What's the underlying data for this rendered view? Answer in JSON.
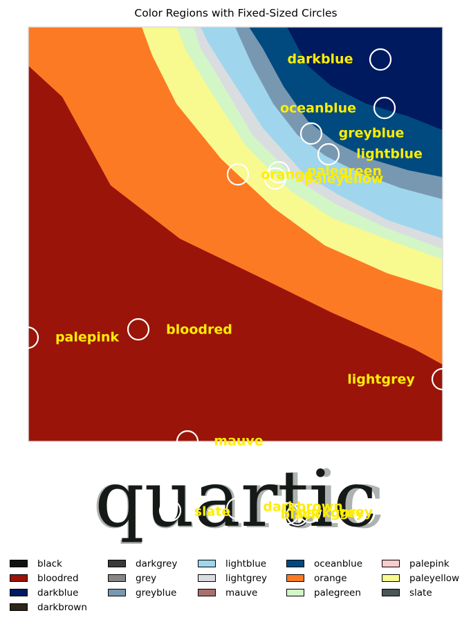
{
  "chart_data": {
    "type": "heatmap",
    "title": "Color Regions with Fixed-Sized Circles",
    "xlabel": "",
    "ylabel": "",
    "grid": false,
    "axes_visible": false,
    "colors": {
      "black": "#111111",
      "bloodred": "#9a1409",
      "darkblue": "#001a5f",
      "darkbrown": "#2e2419",
      "darkgrey": "#3a3a3a",
      "grey": "#868686",
      "greyblue": "#7898b1",
      "lightblue": "#9fd6ee",
      "lightgrey": "#dadde0",
      "mauve": "#a9706c",
      "oceanblue": "#004a7f",
      "orange": "#fc7a24",
      "palegreen": "#d2f6c6",
      "palepink": "#f6cdcc",
      "paleyellow": "#f8f98f",
      "slate": "#495656"
    },
    "regions_top_panel": [
      "bloodred",
      "orange",
      "paleyellow",
      "palegreen",
      "lightgrey",
      "lightblue",
      "greyblue",
      "oceanblue",
      "darkblue"
    ],
    "bottom_panel_word": "quartic",
    "annotations_top": [
      {
        "label": "darkblue"
      },
      {
        "label": "oceanblue"
      },
      {
        "label": "greyblue"
      },
      {
        "label": "lightblue"
      },
      {
        "label": "orange"
      },
      {
        "label": "palegreen"
      },
      {
        "label": "paleyellow"
      },
      {
        "label": "palepink"
      },
      {
        "label": "bloodred"
      },
      {
        "label": "lightgrey"
      },
      {
        "label": "mauve"
      }
    ],
    "annotations_bottom": [
      {
        "label": "slate"
      },
      {
        "label": "darkbrown"
      },
      {
        "label": "black"
      },
      {
        "label": "darkgrey"
      },
      {
        "label": "grey"
      }
    ],
    "legend": {
      "placement": "bottom",
      "columns": [
        [
          "black",
          "bloodred",
          "darkblue",
          "darkbrown"
        ],
        [
          "darkgrey",
          "grey",
          "greyblue"
        ],
        [
          "lightblue",
          "lightgrey",
          "mauve"
        ],
        [
          "oceanblue",
          "orange",
          "palegreen"
        ],
        [
          "palepink",
          "paleyellow",
          "slate"
        ]
      ]
    },
    "label_color": "#ffee00",
    "circle_color": "#ffffff"
  }
}
